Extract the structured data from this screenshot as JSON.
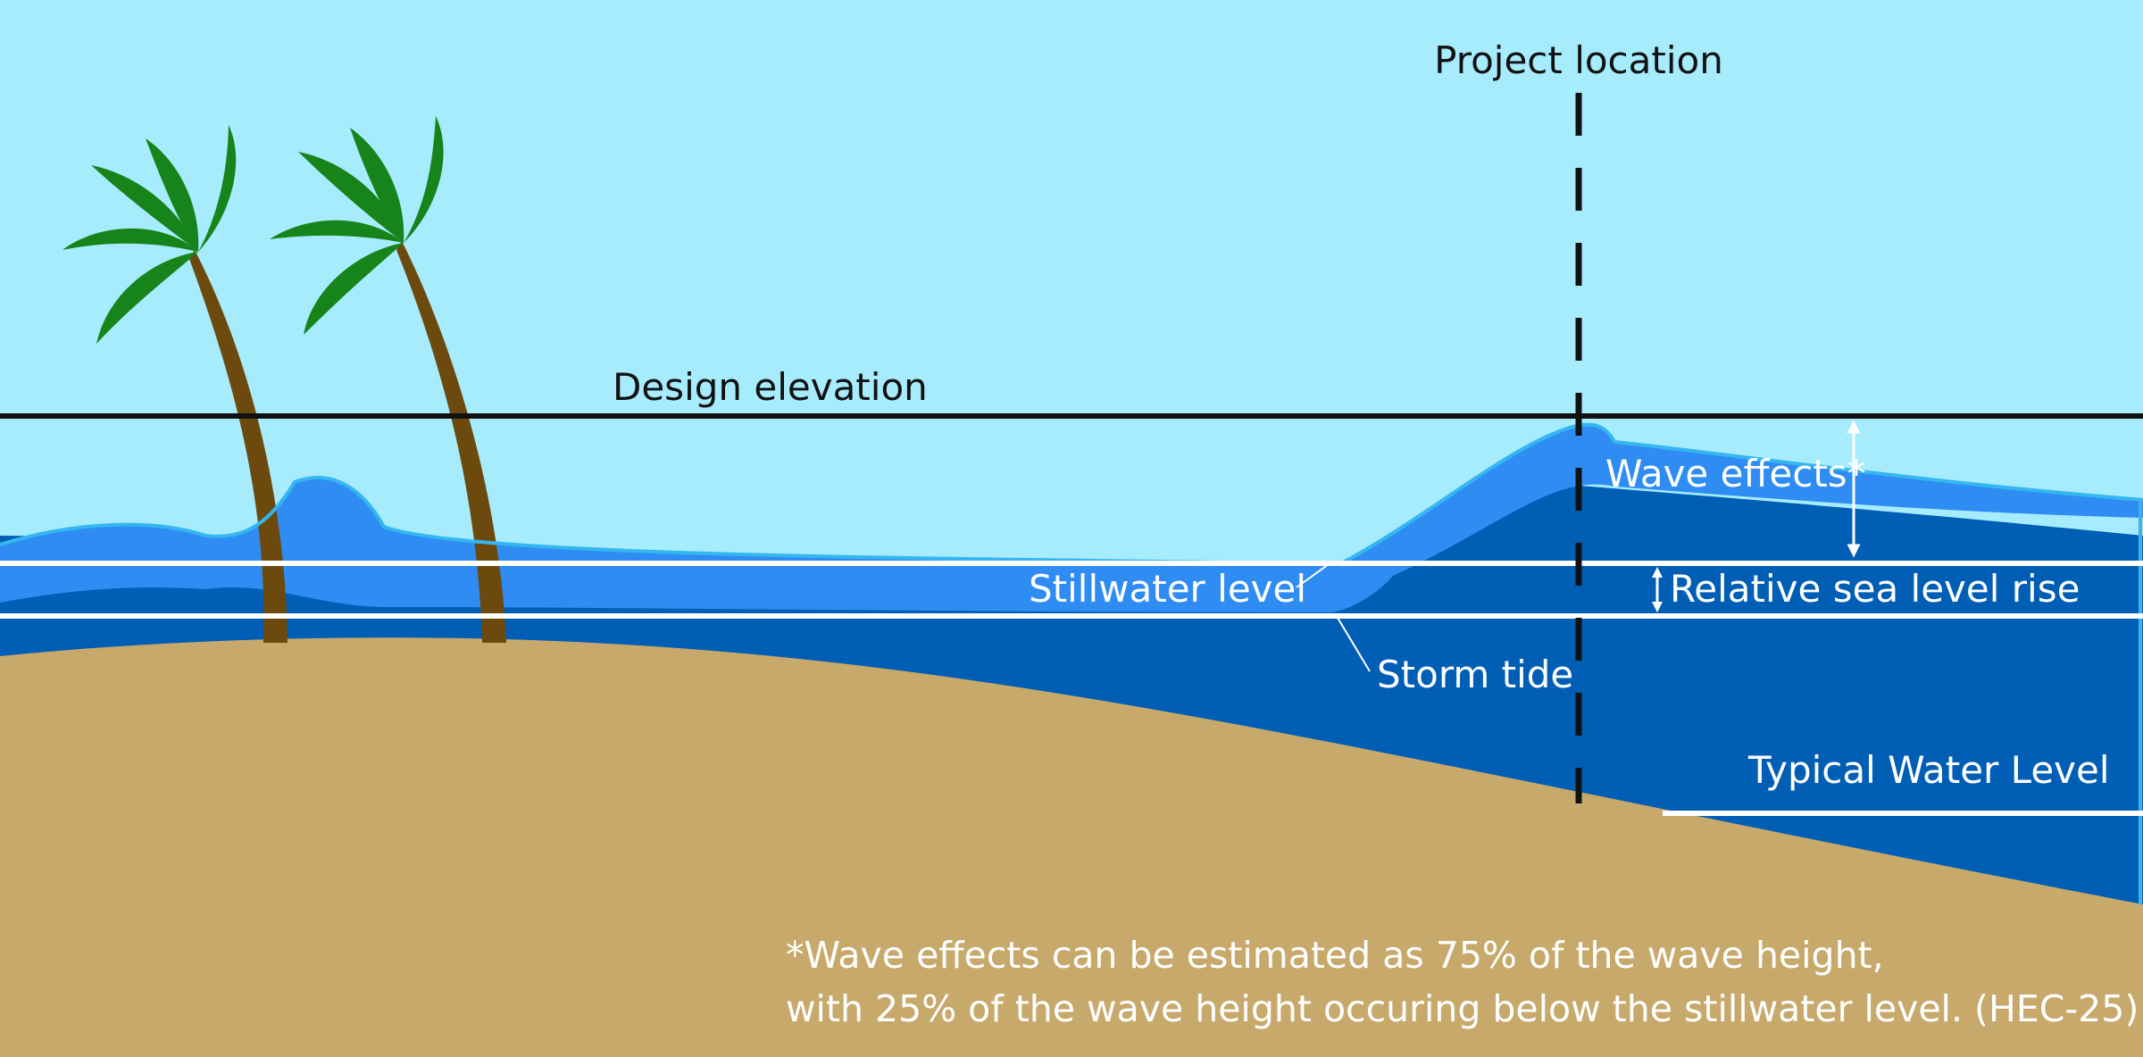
{
  "labels": {
    "project_location": "Project location",
    "design_elevation": "Design elevation",
    "wave_effects": "Wave effects*",
    "stillwater_level": "Stillwater level",
    "relative_sea_level_rise": "Relative sea level rise",
    "storm_tide": "Storm tide",
    "typical_water_level": "Typical Water Level"
  },
  "footnote": {
    "line1": "*Wave effects can be estimated as 75% of the wave height,",
    "line2": "with 25% of the wave height occuring below the stillwater level. (HEC-25)"
  },
  "colors": {
    "sky": "#a6ecfd",
    "sand": "#c7a96b",
    "deep_water": "#005eb5",
    "wave_water": "#2e8cf2",
    "wave_outline": "#35b6f0",
    "trunk": "#6c4a0d",
    "leaf": "#17841b",
    "line_black": "#111111",
    "line_white": "#ffffff"
  }
}
